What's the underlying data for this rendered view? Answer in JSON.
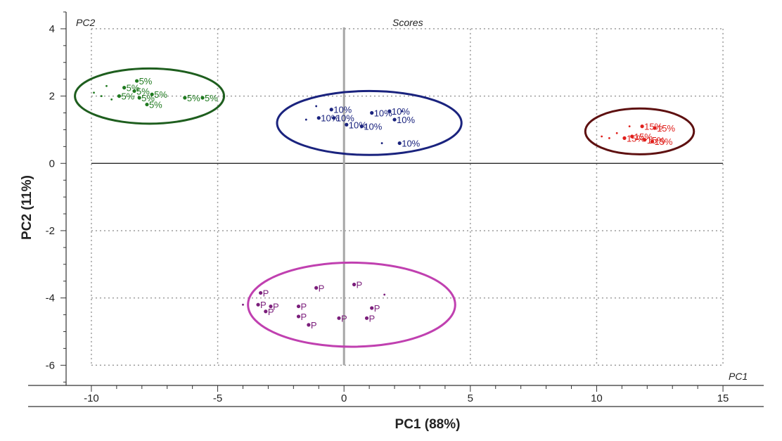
{
  "chart_data": {
    "type": "scatter",
    "title": "Scores",
    "xlabel": "PC1 (88%)",
    "ylabel": "PC2 (11%)",
    "x_corner_label": "PC1",
    "y_corner_label": "PC2",
    "xlim": [
      -11,
      16
    ],
    "ylim": [
      -6.6,
      4.5
    ],
    "xticks": [
      -10,
      -5,
      0,
      5,
      10,
      15
    ],
    "yticks": [
      4,
      2,
      0,
      -2,
      -4,
      -6
    ],
    "xtick_labels": [
      "-10",
      "-5",
      "0",
      "5",
      "10",
      "15"
    ],
    "ytick_labels": [
      "4",
      "2",
      "0",
      "-2",
      "-4",
      "-6"
    ],
    "grid": true,
    "series": [
      {
        "name": "5%",
        "color": "#1f7a1f",
        "ellipse": {
          "cx": -7.7,
          "cy": 2.0,
          "rx": 2.95,
          "ry": 0.82,
          "color": "#1e5e1e"
        },
        "points": [
          {
            "x": -8.2,
            "y": 2.45,
            "label": "5%"
          },
          {
            "x": -8.7,
            "y": 2.25,
            "label": "5%"
          },
          {
            "x": -8.3,
            "y": 2.15,
            "label": "5%"
          },
          {
            "x": -8.9,
            "y": 2.0,
            "label": "5%"
          },
          {
            "x": -8.1,
            "y": 1.95,
            "label": "5%"
          },
          {
            "x": -7.6,
            "y": 2.05,
            "label": "5%"
          },
          {
            "x": -7.8,
            "y": 1.75,
            "label": "5%"
          },
          {
            "x": -6.3,
            "y": 1.95,
            "label": "5%"
          },
          {
            "x": -5.6,
            "y": 1.95,
            "label": "5%"
          },
          {
            "x": -9.4,
            "y": 2.3,
            "label": ""
          },
          {
            "x": -9.6,
            "y": 2.0,
            "label": ""
          },
          {
            "x": -9.9,
            "y": 2.1,
            "label": ""
          },
          {
            "x": -9.2,
            "y": 1.9,
            "label": ""
          }
        ]
      },
      {
        "name": "10%",
        "color": "#1a237e",
        "ellipse": {
          "cx": 1.0,
          "cy": 1.2,
          "rx": 3.65,
          "ry": 0.95,
          "color": "#1a237e"
        },
        "points": [
          {
            "x": -0.5,
            "y": 1.6,
            "label": "10%"
          },
          {
            "x": -1.0,
            "y": 1.35,
            "label": "10%"
          },
          {
            "x": -0.4,
            "y": 1.35,
            "label": "10%"
          },
          {
            "x": 0.1,
            "y": 1.15,
            "label": "10%"
          },
          {
            "x": 0.7,
            "y": 1.1,
            "label": "10%"
          },
          {
            "x": 1.1,
            "y": 1.5,
            "label": "10%"
          },
          {
            "x": 1.8,
            "y": 1.55,
            "label": "10%"
          },
          {
            "x": 2.0,
            "y": 1.3,
            "label": "10%"
          },
          {
            "x": 2.2,
            "y": 0.6,
            "label": "10%"
          },
          {
            "x": -1.5,
            "y": 1.3,
            "label": ""
          },
          {
            "x": -1.1,
            "y": 1.7,
            "label": ""
          },
          {
            "x": 1.5,
            "y": 0.6,
            "label": ""
          },
          {
            "x": 2.3,
            "y": 1.55,
            "label": ""
          }
        ]
      },
      {
        "name": "15%",
        "color": "#e0201c",
        "ellipse": {
          "cx": 11.7,
          "cy": 0.95,
          "rx": 2.15,
          "ry": 0.68,
          "color": "#5e1010"
        },
        "points": [
          {
            "x": 11.8,
            "y": 1.1,
            "label": "15%"
          },
          {
            "x": 12.3,
            "y": 1.05,
            "label": "15%"
          },
          {
            "x": 11.1,
            "y": 0.75,
            "label": "15%"
          },
          {
            "x": 11.4,
            "y": 0.8,
            "label": "15%"
          },
          {
            "x": 11.9,
            "y": 0.7,
            "label": "15%"
          },
          {
            "x": 12.2,
            "y": 0.65,
            "label": "15%"
          },
          {
            "x": 10.2,
            "y": 0.8,
            "label": ""
          },
          {
            "x": 10.5,
            "y": 0.75,
            "label": ""
          },
          {
            "x": 10.8,
            "y": 0.9,
            "label": ""
          },
          {
            "x": 11.3,
            "y": 1.1,
            "label": ""
          }
        ]
      },
      {
        "name": "P",
        "color": "#7b1e7b",
        "ellipse": {
          "cx": 0.3,
          "cy": -4.2,
          "rx": 4.1,
          "ry": 1.25,
          "color": "#c040b0"
        },
        "points": [
          {
            "x": -3.3,
            "y": -3.85,
            "label": "P"
          },
          {
            "x": -3.4,
            "y": -4.2,
            "label": "P"
          },
          {
            "x": -3.1,
            "y": -4.4,
            "label": "P"
          },
          {
            "x": -2.9,
            "y": -4.25,
            "label": "P"
          },
          {
            "x": -1.8,
            "y": -4.25,
            "label": "P"
          },
          {
            "x": -1.8,
            "y": -4.55,
            "label": "P"
          },
          {
            "x": -1.4,
            "y": -4.8,
            "label": "P"
          },
          {
            "x": -1.1,
            "y": -3.7,
            "label": "P"
          },
          {
            "x": 0.4,
            "y": -3.6,
            "label": "P"
          },
          {
            "x": -0.2,
            "y": -4.6,
            "label": "P"
          },
          {
            "x": 0.9,
            "y": -4.6,
            "label": "P"
          },
          {
            "x": 1.1,
            "y": -4.3,
            "label": "P"
          },
          {
            "x": -4.0,
            "y": -4.2,
            "label": ""
          },
          {
            "x": 1.6,
            "y": -3.9,
            "label": ""
          }
        ]
      }
    ]
  }
}
